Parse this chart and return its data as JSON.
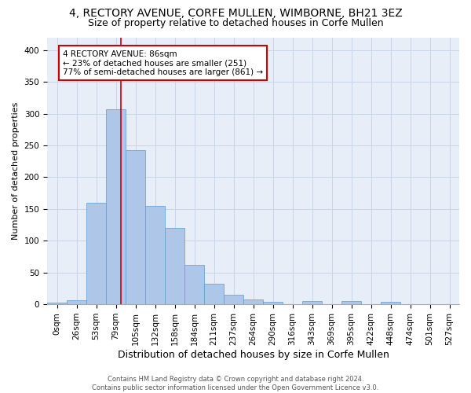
{
  "title_line1": "4, RECTORY AVENUE, CORFE MULLEN, WIMBORNE, BH21 3EZ",
  "title_line2": "Size of property relative to detached houses in Corfe Mullen",
  "xlabel": "Distribution of detached houses by size in Corfe Mullen",
  "ylabel": "Number of detached properties",
  "footer_line1": "Contains HM Land Registry data © Crown copyright and database right 2024.",
  "footer_line2": "Contains public sector information licensed under the Open Government Licence v3.0.",
  "bar_labels": [
    "0sqm",
    "26sqm",
    "53sqm",
    "79sqm",
    "105sqm",
    "132sqm",
    "158sqm",
    "184sqm",
    "211sqm",
    "237sqm",
    "264sqm",
    "290sqm",
    "316sqm",
    "343sqm",
    "369sqm",
    "395sqm",
    "422sqm",
    "448sqm",
    "474sqm",
    "501sqm",
    "527sqm"
  ],
  "bar_heights": [
    2,
    6,
    160,
    307,
    243,
    155,
    120,
    62,
    32,
    15,
    8,
    4,
    0,
    5,
    0,
    5,
    0,
    4,
    0,
    0,
    0
  ],
  "bar_color": "#aec6e8",
  "bar_edge_color": "#5b9bd5",
  "vline_x": 3.27,
  "vline_color": "#cc0000",
  "annotation_text": "4 RECTORY AVENUE: 86sqm\n← 23% of detached houses are smaller (251)\n77% of semi-detached houses are larger (861) →",
  "annotation_box_color": "#ffffff",
  "annotation_box_edge": "#cc0000",
  "ylim": [
    0,
    420
  ],
  "yticks": [
    0,
    50,
    100,
    150,
    200,
    250,
    300,
    350,
    400
  ],
  "grid_color": "#c8d4e8",
  "background_color": "#e8eef8",
  "title_fontsize": 10,
  "subtitle_fontsize": 9,
  "ylabel_fontsize": 8,
  "xlabel_fontsize": 9,
  "tick_fontsize": 7.5,
  "annotation_fontsize": 7.5,
  "footer_fontsize": 6
}
